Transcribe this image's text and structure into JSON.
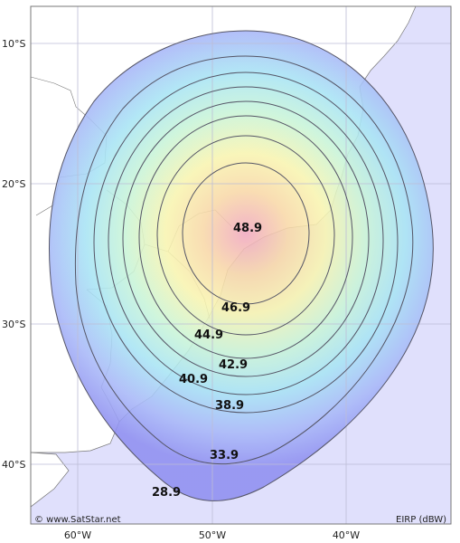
{
  "map": {
    "credit": "© www.SatStar.net",
    "legend_unit": "EIRP (dBW)",
    "latitude_labels": [
      "10°S",
      "20°S",
      "30°S",
      "40°S"
    ],
    "longitude_labels": [
      "60°W",
      "50°W",
      "40°W"
    ],
    "contours": [
      {
        "label": "48.9"
      },
      {
        "label": "46.9"
      },
      {
        "label": "44.9"
      },
      {
        "label": "42.9"
      },
      {
        "label": "40.9"
      },
      {
        "label": "38.9"
      },
      {
        "label": "33.9"
      },
      {
        "label": "28.9"
      }
    ],
    "colors": {
      "ocean": "#e0e0fc",
      "land": "#ffffff",
      "grid": "#bdbdd6",
      "contour_line": "#555566",
      "footprint_outer": "#8f8ff0",
      "footprint_center": "#f0a8c0"
    }
  }
}
